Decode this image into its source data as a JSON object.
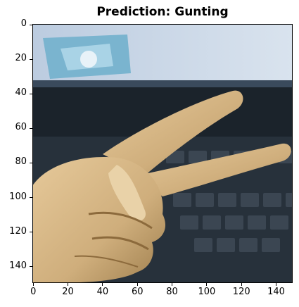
{
  "chart_data": {
    "type": "image",
    "title": "Prediction: Gunting",
    "x_ticks": [
      "0",
      "20",
      "40",
      "60",
      "80",
      "100",
      "120",
      "140"
    ],
    "y_ticks": [
      "0",
      "20",
      "40",
      "60",
      "80",
      "100",
      "120",
      "140"
    ],
    "xlim": [
      -0.5,
      149.5
    ],
    "ylim": [
      149.5,
      -0.5
    ]
  },
  "image": {
    "description_icon": "hand-scissors-gesture-photo",
    "colors": {
      "screen": "#c9d7e6",
      "bezel": "#1e2730",
      "keyboard": "#26303a",
      "skin": "#d9b98a",
      "skin_shadow": "#a88454"
    }
  }
}
